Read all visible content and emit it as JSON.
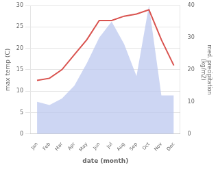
{
  "chart_data": {
    "type": "line",
    "xlabel": "date (month)",
    "ylabel": "max temp (C)",
    "y2label": "med. precipitation\n(kg/m2)",
    "categories": [
      "Jan",
      "Feb",
      "Mar",
      "Apr",
      "May",
      "Jun",
      "Jul",
      "Aug",
      "Sep",
      "Oct",
      "Nov",
      "Dec"
    ],
    "series": [
      {
        "type": "line",
        "color": "#d9534f",
        "values": [
          12.5,
          13.0,
          15.0,
          18.5,
          22.0,
          26.5,
          26.5,
          27.5,
          28.0,
          29.0,
          22.0,
          16.0
        ]
      },
      {
        "type": "area",
        "axis": "y2",
        "color": "#b8c4ee",
        "values": [
          10.0,
          9.0,
          11.0,
          15.0,
          22.0,
          30.0,
          35.0,
          28.0,
          18.0,
          40.0,
          12.0,
          12.0
        ]
      }
    ],
    "ylim": [
      0,
      30
    ],
    "yticks": [
      0,
      5,
      10,
      15,
      20,
      25,
      30
    ],
    "y2lim": [
      0,
      40
    ],
    "y2ticks": [
      0,
      10,
      20,
      30,
      40
    ],
    "grid": true
  }
}
